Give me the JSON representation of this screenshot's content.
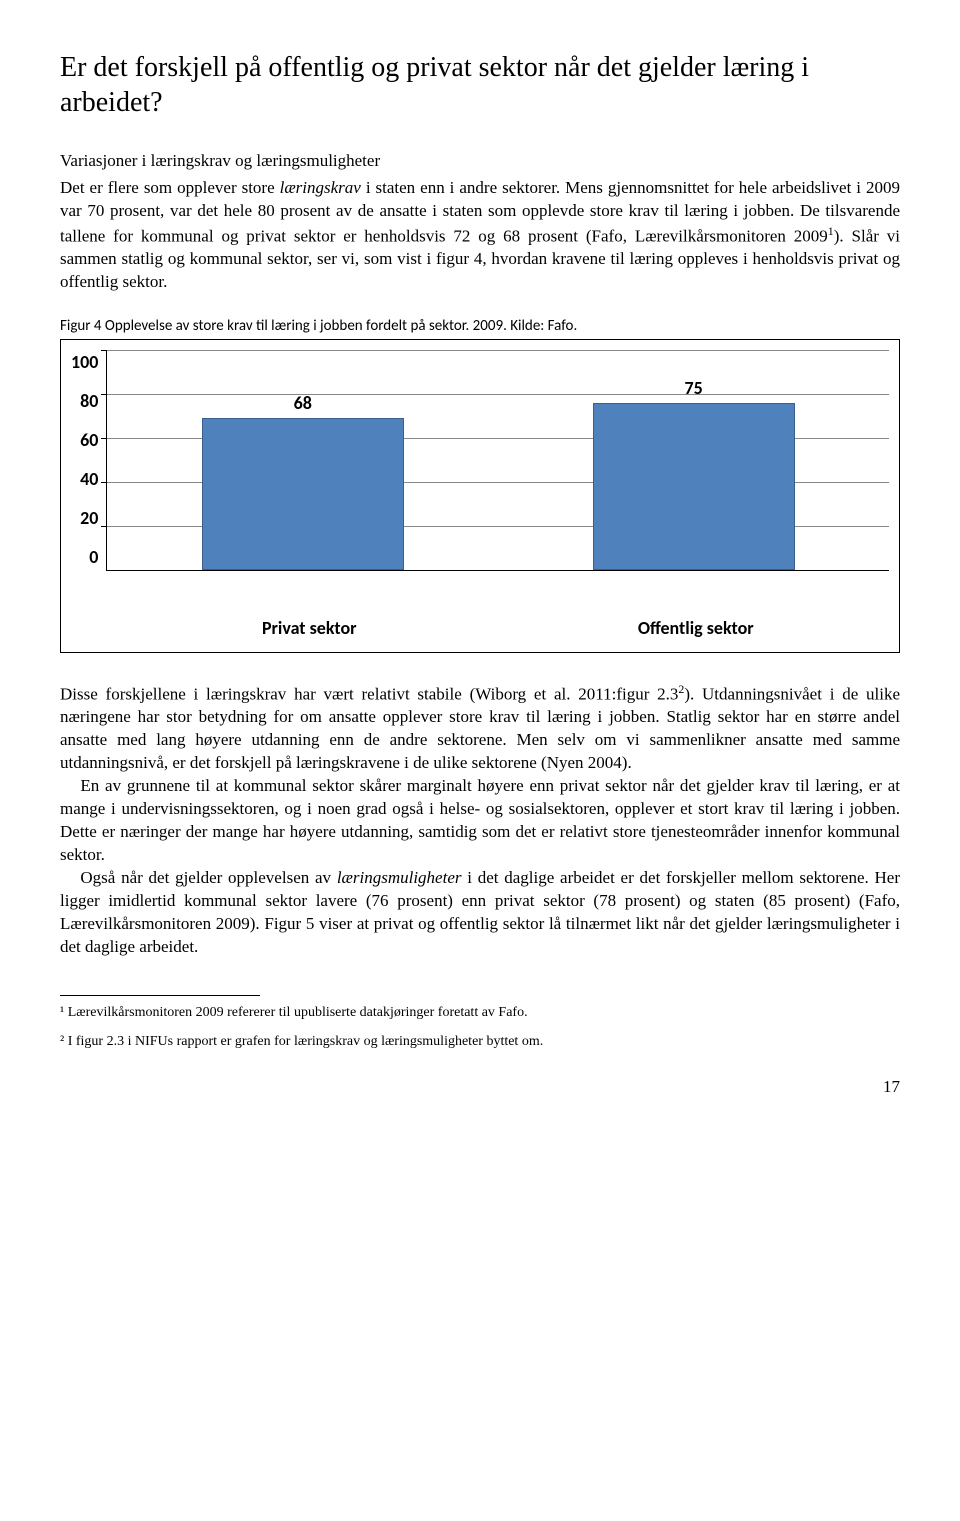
{
  "title": "Er det forskjell på offentlig og privat sektor når det gjelder læring i arbeidet?",
  "subhead": "Variasjoner i læringskrav og læringsmuligheter",
  "p1": "Det er flere som opplever store læringskrav i staten enn i andre sektorer. Mens gjennomsnittet for hele arbeidslivet i 2009 var 70 prosent, var det hele 80 prosent av de ansatte i staten som opplevde store krav til læring i jobben. De tilsvarende tallene for kommunal og privat sektor er henholdsvis 72 og 68 prosent (Fafo, Lærevilkårsmonitoren 2009¹). Slår vi sammen statlig og kommunal sektor, ser vi, som vist i figur 4, hvordan kravene til læring oppleves i henholdsvis privat og offentlig sektor.",
  "figcap": "Figur 4 Opplevelse av store krav til læring i jobben fordelt på sektor. 2009. Kilde: Fafo.",
  "chart": {
    "type": "bar",
    "ymax": 100,
    "ytick_step": 20,
    "yticks": [
      "100",
      "80",
      "60",
      "40",
      "20",
      "0"
    ],
    "categories": [
      "Privat sektor",
      "Offentlig sektor"
    ],
    "values": [
      68,
      75
    ],
    "bar_color": "#4f81bd",
    "bar_border": "#3a5f8c",
    "grid_color": "#888888",
    "background": "#ffffff",
    "label_fontsize": 18,
    "label_fontweight": "bold"
  },
  "p2": "Disse forskjellene i læringskrav har vært relativt stabile (Wiborg et al. 2011:figur 2.3²). Utdanningsnivået i de ulike næringene har stor betydning for om ansatte opplever store krav til læring i jobben. Statlig sektor har en større andel ansatte med lang høyere utdanning enn de andre sektorene. Men selv om vi sammenlikner ansatte med samme utdanningsnivå, er det forskjell på læringskravene i de ulike sektorene (Nyen 2004).",
  "p3": "En av grunnene til at kommunal sektor skårer marginalt høyere enn privat sektor når det gjelder krav til læring, er at mange i undervisningssektoren, og i noen grad også i helse- og sosialsektoren, opplever et stort krav til læring i jobben. Dette er næringer der mange har høyere utdanning, samtidig som det er relativt store tjenesteområder innenfor kommunal sektor.",
  "p4": "Også når det gjelder opplevelsen av læringsmuligheter i det daglige arbeidet er det forskjeller mellom sektorene. Her ligger imidlertid kommunal sektor lavere (76 prosent) enn privat sektor (78 prosent) og staten (85 prosent) (Fafo, Lærevilkårsmonitoren 2009). Figur 5 viser at privat og offentlig sektor lå tilnærmet likt når det gjelder læringsmuligheter i det daglige arbeidet.",
  "fn1": "¹ Lærevilkårsmonitoren 2009 refererer til upubliserte datakjøringer foretatt av Fafo.",
  "fn2": "² I figur 2.3 i NIFUs rapport er grafen for læringskrav og læringsmuligheter byttet om.",
  "pagenum": "17"
}
